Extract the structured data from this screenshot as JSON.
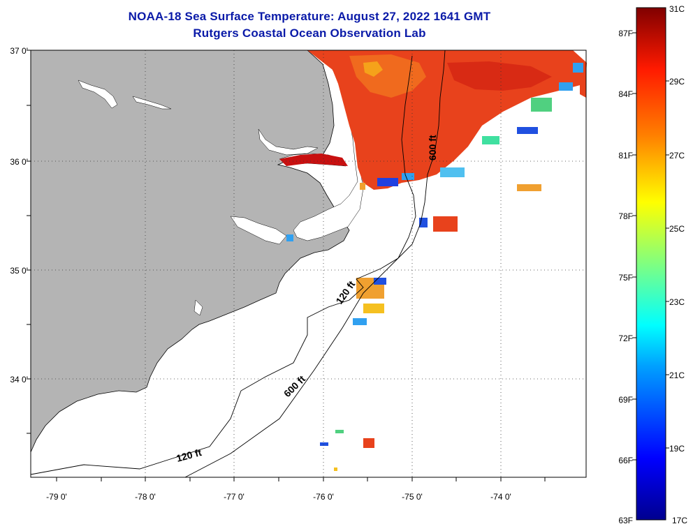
{
  "title": "NOAA-18 Sea Surface Temperature:  August 27, 2022 1641 GMT",
  "subtitle": "Rutgers Coastal Ocean Observation Lab",
  "map": {
    "lat_labels": [
      "37 0'",
      "36 0'",
      "35 0'",
      "34 0'"
    ],
    "lon_labels": [
      "-79 0'",
      "-78 0'",
      "-77 0'",
      "-76 0'",
      "-75 0'",
      "-74 0'"
    ],
    "contour_labels": [
      "600 ft",
      "120 ft",
      "600 ft",
      "120 ft"
    ]
  },
  "colorbar": {
    "fahrenheit": [
      "87F",
      "84F",
      "81F",
      "78F",
      "75F",
      "72F",
      "69F",
      "66F",
      "63F"
    ],
    "celsius": [
      "31C",
      "29C",
      "27C",
      "25C",
      "23C",
      "21C",
      "19C",
      "17C"
    ]
  },
  "colors": {
    "land": "#b4b4b4",
    "title": "#0a1aa8",
    "warm": "#e8421c",
    "hot": "#c81010"
  }
}
